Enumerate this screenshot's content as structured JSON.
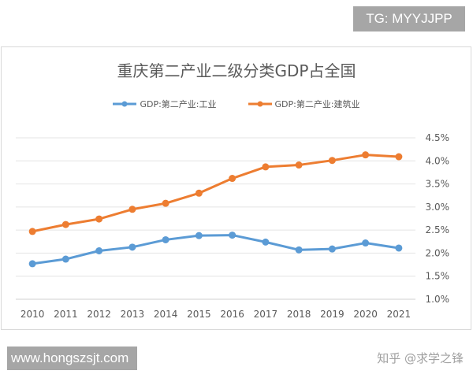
{
  "banner_top": "TG: MYYJJPP",
  "banner_bottom": "www.hongszsjt.com",
  "watermark": "知乎 @求学之锋",
  "chart_data": {
    "type": "line",
    "title": "重庆第二产业二级分类GDP占全国",
    "categories": [
      "2010",
      "2011",
      "2012",
      "2013",
      "2014",
      "2015",
      "2016",
      "2017",
      "2018",
      "2019",
      "2020",
      "2021"
    ],
    "series": [
      {
        "name": "GDP:第二产业:工业",
        "color": "#5b9bd5",
        "values": [
          1.77,
          1.87,
          2.05,
          2.13,
          2.29,
          2.38,
          2.39,
          2.24,
          2.07,
          2.09,
          2.22,
          2.11
        ]
      },
      {
        "name": "GDP:第二产业:建筑业",
        "color": "#ed7d31",
        "values": [
          2.47,
          2.62,
          2.74,
          2.95,
          3.08,
          3.3,
          3.62,
          3.87,
          3.91,
          4.01,
          4.13,
          4.09
        ]
      }
    ],
    "y_ticks": [
      "1.0%",
      "1.5%",
      "2.0%",
      "2.5%",
      "3.0%",
      "3.5%",
      "4.0%",
      "4.5%"
    ],
    "ylim": [
      1.0,
      4.5
    ],
    "y_axis_side": "right",
    "grid": true,
    "legend_position": "top"
  }
}
